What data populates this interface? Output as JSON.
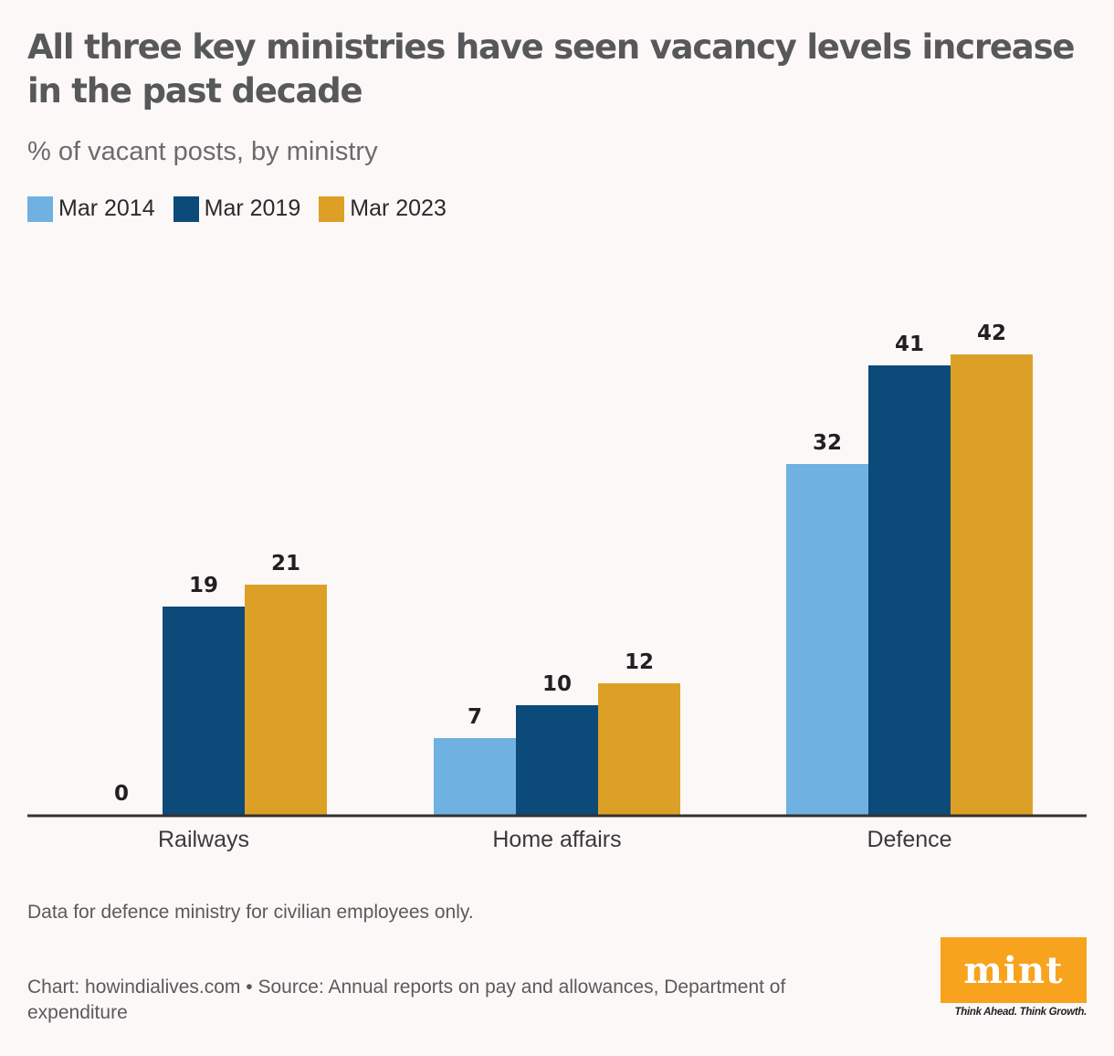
{
  "header": {
    "title": "All three key ministries have seen vacancy levels increase in the past decade",
    "subtitle": "% of vacant posts, by ministry"
  },
  "legend": [
    {
      "label": "Mar 2014",
      "color": "#6fb1e0"
    },
    {
      "label": "Mar 2019",
      "color": "#0c4a7a"
    },
    {
      "label": "Mar 2023",
      "color": "#dda026"
    }
  ],
  "chart_data": {
    "type": "bar",
    "title": "All three key ministries have seen vacancy levels increase in the past decade",
    "subtitle": "% of vacant posts, by ministry",
    "xlabel": "",
    "ylabel": "% of vacant posts",
    "categories": [
      "Railways",
      "Home affairs",
      "Defence"
    ],
    "series": [
      {
        "name": "Mar 2014",
        "color": "#6fb1e0",
        "values": [
          0,
          7,
          32
        ]
      },
      {
        "name": "Mar 2019",
        "color": "#0c4a7a",
        "values": [
          19,
          10,
          41
        ]
      },
      {
        "name": "Mar 2023",
        "color": "#dda026",
        "values": [
          21,
          12,
          42
        ]
      }
    ],
    "ylim": [
      0,
      42
    ],
    "grid": false,
    "legend_position": "top-left",
    "data_labels": true
  },
  "footer": {
    "note": "Data for defence ministry for civilian employees only.",
    "source": "Chart: howindialives.com • Source: Annual reports on pay and allowances, Department of expenditure",
    "logo_text": "mint",
    "tagline": "Think Ahead. Think Growth."
  }
}
